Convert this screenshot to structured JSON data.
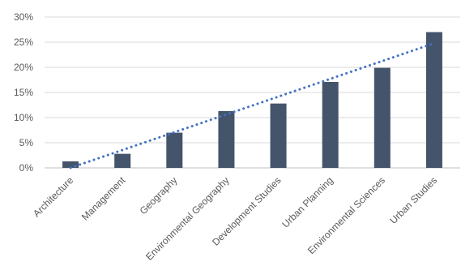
{
  "chart_data": {
    "type": "bar",
    "categories": [
      "Architecture",
      "Management",
      "Geography",
      "Environmental Geography",
      "Development Studies",
      "Urban Planning",
      "Environmental Sciences",
      "Urban Studies"
    ],
    "values": [
      1.3,
      2.8,
      7.0,
      11.3,
      12.8,
      17.1,
      19.9,
      27.0
    ],
    "y_unit": "%",
    "ylim": [
      0,
      30
    ],
    "yticks": [
      0,
      5,
      10,
      15,
      20,
      25,
      30
    ],
    "ytick_labels": [
      "0%",
      "5%",
      "10%",
      "15%",
      "20%",
      "25%",
      "30%"
    ],
    "trendline": {
      "type": "linear",
      "style": "dotted"
    },
    "grid": "horizontal",
    "legend": "none",
    "colors": {
      "bar": "#44546a",
      "trend": "#4472c4",
      "grid": "#d9d9d9",
      "text": "#595959"
    }
  }
}
